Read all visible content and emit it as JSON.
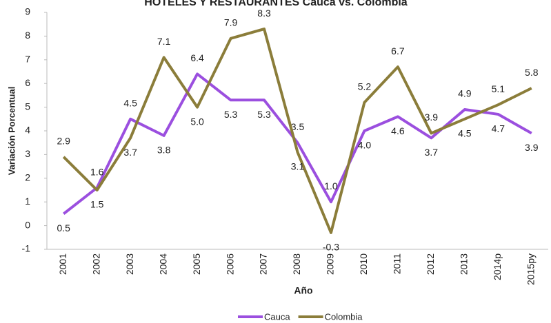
{
  "chart_data": {
    "type": "line",
    "title": "HOTELES Y RESTAURANTES Cauca vs. Colombia",
    "xlabel": "Año",
    "ylabel": "Variación Porcentual",
    "categories": [
      "2001",
      "2002",
      "2003",
      "2004",
      "2005",
      "2006",
      "2007",
      "2008",
      "2009",
      "2010",
      "2011",
      "2012",
      "2013",
      "2014p",
      "2015py"
    ],
    "series": [
      {
        "name": "Cauca",
        "color": "#9b4fdf",
        "values": [
          0.5,
          1.6,
          4.5,
          3.8,
          6.4,
          5.3,
          5.3,
          3.5,
          1.0,
          4.0,
          4.6,
          3.7,
          4.9,
          4.7,
          3.9
        ],
        "value_labels": [
          "0.5",
          "1.6",
          "4.5",
          "3.8",
          "6.4",
          "5.3",
          "5.3",
          "3.5",
          "1.0",
          "4.0",
          "4.6",
          "3.7",
          "4.9",
          "4.7",
          "3.9"
        ]
      },
      {
        "name": "Colombia",
        "color": "#8b7d3a",
        "values": [
          2.9,
          1.5,
          3.7,
          7.1,
          5.0,
          7.9,
          8.3,
          3.1,
          -0.3,
          5.2,
          6.7,
          3.9,
          4.5,
          5.1,
          5.8
        ],
        "value_labels": [
          "2.9",
          "1.5",
          "3.7",
          "7.1",
          "5.0",
          "7.9",
          "8.3",
          "3.1",
          "-0.3",
          "5.2",
          "6.7",
          "3.9",
          "4.5",
          "5.1",
          "5.8"
        ]
      }
    ],
    "ylim": [
      -1,
      9
    ],
    "yticks": [
      -1,
      0,
      1,
      2,
      3,
      4,
      5,
      6,
      7,
      8,
      9
    ],
    "legend": "bottom"
  }
}
